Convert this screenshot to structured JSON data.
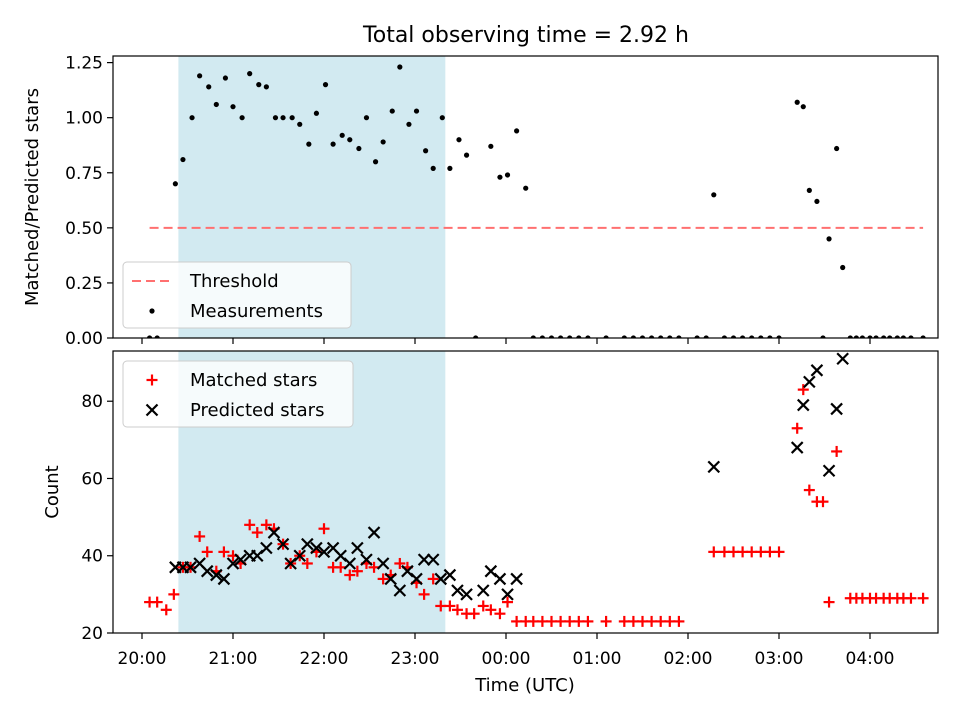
{
  "figure": {
    "title": "Total observing time = 2.92 h",
    "xlabel": "Time (UTC)",
    "x_ticks": [
      "20:00",
      "21:00",
      "22:00",
      "23:00",
      "00:00",
      "01:00",
      "02:00",
      "03:00",
      "04:00"
    ],
    "shaded_interval": [
      "20:24",
      "23:20"
    ],
    "colors": {
      "shade": "#add8e6",
      "threshold": "#ff7070",
      "measurements": "#000000",
      "matched": "#ff0000",
      "predicted": "#000000"
    }
  },
  "chart_data": [
    {
      "type": "scatter",
      "title": "Total observing time = 2.92 h",
      "xlabel": "Time (UTC)",
      "ylabel": "Matched/Predicted stars",
      "ylim": [
        0,
        1.28
      ],
      "y_ticks": [
        "0.00",
        "0.25",
        "0.50",
        "0.75",
        "1.00",
        "1.25"
      ],
      "legend_position": "lower-left",
      "legend": [
        "Threshold",
        "Measurements"
      ],
      "threshold": {
        "name": "Threshold",
        "value": 0.5,
        "x_range": [
          "20:05",
          "04:35"
        ],
        "style": "dashed"
      },
      "series": [
        {
          "name": "Measurements",
          "marker": "dot",
          "points": [
            [
              "20:05",
              0.0
            ],
            [
              "20:10",
              0.0
            ],
            [
              "20:22",
              0.7
            ],
            [
              "20:27",
              0.81
            ],
            [
              "20:33",
              1.0
            ],
            [
              "20:38",
              1.19
            ],
            [
              "20:44",
              1.14
            ],
            [
              "20:49",
              1.06
            ],
            [
              "20:55",
              1.18
            ],
            [
              "21:00",
              1.05
            ],
            [
              "21:06",
              1.0
            ],
            [
              "21:11",
              1.2
            ],
            [
              "21:17",
              1.15
            ],
            [
              "21:22",
              1.14
            ],
            [
              "21:28",
              1.0
            ],
            [
              "21:33",
              1.0
            ],
            [
              "21:39",
              1.0
            ],
            [
              "21:44",
              0.97
            ],
            [
              "21:50",
              0.88
            ],
            [
              "21:55",
              1.02
            ],
            [
              "22:01",
              1.15
            ],
            [
              "22:06",
              0.88
            ],
            [
              "22:12",
              0.92
            ],
            [
              "22:17",
              0.9
            ],
            [
              "22:23",
              0.86
            ],
            [
              "22:28",
              1.0
            ],
            [
              "22:34",
              0.8
            ],
            [
              "22:39",
              0.89
            ],
            [
              "22:45",
              1.03
            ],
            [
              "22:50",
              1.23
            ],
            [
              "22:56",
              0.97
            ],
            [
              "23:01",
              1.03
            ],
            [
              "23:07",
              0.85
            ],
            [
              "23:12",
              0.77
            ],
            [
              "23:18",
              1.0
            ],
            [
              "23:23",
              0.77
            ],
            [
              "23:29",
              0.9
            ],
            [
              "23:34",
              0.83
            ],
            [
              "23:40",
              0.0
            ],
            [
              "23:50",
              0.87
            ],
            [
              "23:56",
              0.73
            ],
            [
              "00:01",
              0.74
            ],
            [
              "00:07",
              0.94
            ],
            [
              "00:13",
              0.68
            ],
            [
              "00:18",
              0.0
            ],
            [
              "00:24",
              0.0
            ],
            [
              "00:30",
              0.0
            ],
            [
              "00:36",
              0.0
            ],
            [
              "00:42",
              0.0
            ],
            [
              "00:48",
              0.0
            ],
            [
              "00:54",
              0.0
            ],
            [
              "01:06",
              0.0
            ],
            [
              "01:18",
              0.0
            ],
            [
              "01:24",
              0.0
            ],
            [
              "01:30",
              0.0
            ],
            [
              "01:36",
              0.0
            ],
            [
              "01:42",
              0.0
            ],
            [
              "01:48",
              0.0
            ],
            [
              "01:54",
              0.0
            ],
            [
              "02:06",
              0.0
            ],
            [
              "02:12",
              0.0
            ],
            [
              "02:17",
              0.65
            ],
            [
              "02:24",
              0.0
            ],
            [
              "02:30",
              0.0
            ],
            [
              "02:36",
              0.0
            ],
            [
              "02:42",
              0.0
            ],
            [
              "02:48",
              0.0
            ],
            [
              "02:54",
              0.0
            ],
            [
              "03:00",
              0.0
            ],
            [
              "03:12",
              1.07
            ],
            [
              "03:16",
              1.05
            ],
            [
              "03:20",
              0.67
            ],
            [
              "03:25",
              0.62
            ],
            [
              "03:29",
              0.0
            ],
            [
              "03:33",
              0.45
            ],
            [
              "03:38",
              0.86
            ],
            [
              "03:42",
              0.32
            ],
            [
              "03:47",
              0.0
            ],
            [
              "03:51",
              0.0
            ],
            [
              "03:55",
              0.0
            ],
            [
              "04:00",
              0.0
            ],
            [
              "04:04",
              0.0
            ],
            [
              "04:09",
              0.0
            ],
            [
              "04:13",
              0.0
            ],
            [
              "04:18",
              0.0
            ],
            [
              "04:22",
              0.0
            ],
            [
              "04:27",
              0.0
            ],
            [
              "04:35",
              0.0
            ]
          ]
        }
      ]
    },
    {
      "type": "scatter",
      "xlabel": "Time (UTC)",
      "ylabel": "Count",
      "ylim": [
        20,
        93
      ],
      "y_ticks": [
        "20",
        "40",
        "60",
        "80"
      ],
      "legend_position": "upper-left",
      "legend": [
        "Matched stars",
        "Predicted stars"
      ],
      "series": [
        {
          "name": "Matched stars",
          "marker": "plus",
          "points": [
            [
              "20:05",
              28
            ],
            [
              "20:10",
              28
            ],
            [
              "20:16",
              26
            ],
            [
              "20:21",
              30
            ],
            [
              "20:27",
              37
            ],
            [
              "20:32",
              37
            ],
            [
              "20:38",
              45
            ],
            [
              "20:43",
              41
            ],
            [
              "20:49",
              36
            ],
            [
              "20:54",
              41
            ],
            [
              "21:00",
              40
            ],
            [
              "21:05",
              38
            ],
            [
              "21:11",
              48
            ],
            [
              "21:16",
              46
            ],
            [
              "21:22",
              48
            ],
            [
              "21:27",
              47
            ],
            [
              "21:33",
              43
            ],
            [
              "21:38",
              38
            ],
            [
              "21:44",
              40
            ],
            [
              "21:49",
              38
            ],
            [
              "21:55",
              41
            ],
            [
              "22:00",
              47
            ],
            [
              "22:06",
              37
            ],
            [
              "22:11",
              37
            ],
            [
              "22:17",
              35
            ],
            [
              "22:22",
              36
            ],
            [
              "22:28",
              38
            ],
            [
              "22:33",
              37
            ],
            [
              "22:39",
              34
            ],
            [
              "22:44",
              35
            ],
            [
              "22:50",
              38
            ],
            [
              "22:55",
              37
            ],
            [
              "23:01",
              33
            ],
            [
              "23:06",
              30
            ],
            [
              "23:12",
              34
            ],
            [
              "23:17",
              27
            ],
            [
              "23:23",
              27
            ],
            [
              "23:28",
              26
            ],
            [
              "23:34",
              25
            ],
            [
              "23:39",
              25
            ],
            [
              "23:45",
              27
            ],
            [
              "23:50",
              26
            ],
            [
              "23:56",
              25
            ],
            [
              "00:01",
              28
            ],
            [
              "00:07",
              23
            ],
            [
              "00:13",
              23
            ],
            [
              "00:18",
              23
            ],
            [
              "00:24",
              23
            ],
            [
              "00:30",
              23
            ],
            [
              "00:36",
              23
            ],
            [
              "00:42",
              23
            ],
            [
              "00:48",
              23
            ],
            [
              "00:54",
              23
            ],
            [
              "01:06",
              23
            ],
            [
              "01:18",
              23
            ],
            [
              "01:24",
              23
            ],
            [
              "01:30",
              23
            ],
            [
              "01:36",
              23
            ],
            [
              "01:42",
              23
            ],
            [
              "01:48",
              23
            ],
            [
              "01:54",
              23
            ],
            [
              "02:17",
              41
            ],
            [
              "02:24",
              41
            ],
            [
              "02:30",
              41
            ],
            [
              "02:36",
              41
            ],
            [
              "02:42",
              41
            ],
            [
              "02:48",
              41
            ],
            [
              "02:54",
              41
            ],
            [
              "03:00",
              41
            ],
            [
              "03:12",
              73
            ],
            [
              "03:16",
              83
            ],
            [
              "03:20",
              57
            ],
            [
              "03:25",
              54
            ],
            [
              "03:29",
              54
            ],
            [
              "03:33",
              28
            ],
            [
              "03:38",
              67
            ],
            [
              "03:47",
              29
            ],
            [
              "03:51",
              29
            ],
            [
              "03:55",
              29
            ],
            [
              "04:00",
              29
            ],
            [
              "04:04",
              29
            ],
            [
              "04:09",
              29
            ],
            [
              "04:13",
              29
            ],
            [
              "04:18",
              29
            ],
            [
              "04:22",
              29
            ],
            [
              "04:27",
              29
            ],
            [
              "04:35",
              29
            ]
          ]
        },
        {
          "name": "Predicted stars",
          "marker": "x",
          "points": [
            [
              "20:22",
              37
            ],
            [
              "20:27",
              37
            ],
            [
              "20:32",
              37
            ],
            [
              "20:38",
              38
            ],
            [
              "20:43",
              36
            ],
            [
              "20:49",
              35
            ],
            [
              "20:54",
              34
            ],
            [
              "21:00",
              38
            ],
            [
              "21:05",
              39
            ],
            [
              "21:11",
              40
            ],
            [
              "21:16",
              40
            ],
            [
              "21:22",
              42
            ],
            [
              "21:27",
              46
            ],
            [
              "21:33",
              43
            ],
            [
              "21:38",
              38
            ],
            [
              "21:44",
              40
            ],
            [
              "21:49",
              43
            ],
            [
              "21:55",
              42
            ],
            [
              "22:00",
              41
            ],
            [
              "22:06",
              42
            ],
            [
              "22:11",
              40
            ],
            [
              "22:17",
              38
            ],
            [
              "22:22",
              42
            ],
            [
              "22:28",
              39
            ],
            [
              "22:33",
              46
            ],
            [
              "22:39",
              38
            ],
            [
              "22:44",
              34
            ],
            [
              "22:50",
              31
            ],
            [
              "22:55",
              36
            ],
            [
              "23:01",
              34
            ],
            [
              "23:06",
              39
            ],
            [
              "23:12",
              39
            ],
            [
              "23:17",
              34
            ],
            [
              "23:23",
              35
            ],
            [
              "23:28",
              31
            ],
            [
              "23:34",
              30
            ],
            [
              "23:45",
              31
            ],
            [
              "23:50",
              36
            ],
            [
              "23:56",
              34
            ],
            [
              "00:01",
              30
            ],
            [
              "00:07",
              34
            ],
            [
              "02:17",
              63
            ],
            [
              "03:12",
              68
            ],
            [
              "03:16",
              79
            ],
            [
              "03:20",
              85
            ],
            [
              "03:25",
              88
            ],
            [
              "03:33",
              62
            ],
            [
              "03:38",
              78
            ],
            [
              "03:42",
              91
            ]
          ]
        }
      ]
    }
  ]
}
